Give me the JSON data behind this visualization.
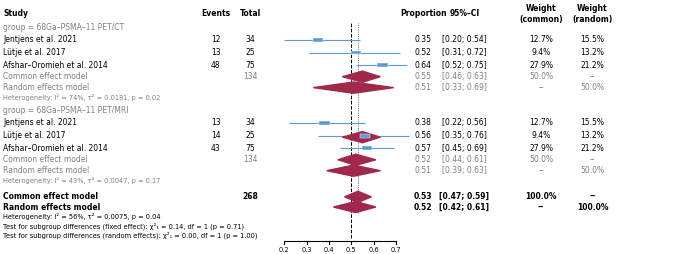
{
  "group1_label": "group = 68Ga–PSMA–11 PET/CT",
  "group2_label": "group = 68Ga–PSMA–11 PET/MRI",
  "studies_g1": [
    {
      "name": "Jentjens et al. 2021",
      "events": 12,
      "total": 34,
      "prop": 0.35,
      "ci_lo": 0.2,
      "ci_hi": 0.54,
      "w_common": "12.7%",
      "w_random": "15.5%"
    },
    {
      "name": "Lütje et al. 2017",
      "events": 13,
      "total": 25,
      "prop": 0.52,
      "ci_lo": 0.31,
      "ci_hi": 0.72,
      "w_common": "9.4%",
      "w_random": "13.2%"
    },
    {
      "name": "Afshar–Oromieh et al. 2014",
      "events": 48,
      "total": 75,
      "prop": 0.64,
      "ci_lo": 0.52,
      "ci_hi": 0.75,
      "w_common": "27.9%",
      "w_random": "21.2%"
    }
  ],
  "common_g1": {
    "total": 134,
    "prop": 0.55,
    "ci_lo": 0.46,
    "ci_hi": 0.63,
    "w_common": "50.0%",
    "w_random": "--"
  },
  "random_g1": {
    "prop": 0.51,
    "ci_lo": 0.33,
    "ci_hi": 0.69,
    "w_common": "--",
    "w_random": "50.0%"
  },
  "hetero_g1": "Heterogeneity: I² = 74%, τ² = 0.0181, p = 0.02",
  "studies_g2": [
    {
      "name": "Jentjens et al. 2021",
      "events": 13,
      "total": 34,
      "prop": 0.38,
      "ci_lo": 0.22,
      "ci_hi": 0.56,
      "w_common": "12.7%",
      "w_random": "15.5%"
    },
    {
      "name": "Lütje et al. 2017",
      "events": 14,
      "total": 25,
      "prop": 0.56,
      "ci_lo": 0.35,
      "ci_hi": 0.76,
      "w_common": "9.4%",
      "w_random": "13.2%"
    },
    {
      "name": "Afshar–Oromieh et al. 2014",
      "events": 43,
      "total": 75,
      "prop": 0.57,
      "ci_lo": 0.45,
      "ci_hi": 0.69,
      "w_common": "27.9%",
      "w_random": "21.2%"
    }
  ],
  "common_g2": {
    "total": 134,
    "prop": 0.52,
    "ci_lo": 0.44,
    "ci_hi": 0.61,
    "w_common": "50.0%",
    "w_random": "--"
  },
  "random_g2": {
    "prop": 0.51,
    "ci_lo": 0.39,
    "ci_hi": 0.63,
    "w_common": "--",
    "w_random": "50.0%"
  },
  "hetero_g2": "Heterogeneity: I² = 43%, τ² = 0.0047, p = 0.17",
  "overall_common": {
    "total": 268,
    "prop": 0.53,
    "ci_lo": 0.47,
    "ci_hi": 0.59,
    "w_common": "100.0%",
    "w_random": "--"
  },
  "overall_random": {
    "prop": 0.52,
    "ci_lo": 0.42,
    "ci_hi": 0.61,
    "w_common": "--",
    "w_random": "100.0%"
  },
  "hetero_overall": "Heterogeneity: I² = 56%, τ² = 0.0075, p = 0.04",
  "subgroup_fixed": "Test for subgroup differences (fixed effect): χ²₁ = 0.14, df = 1 (p = 0.71)",
  "subgroup_random": "Test for subgroup differences (random effects): χ²₁ = 0.00, df = 1 (p = 1.00)",
  "xmin": 0.2,
  "xmax": 0.7,
  "xticks": [
    0.2,
    0.3,
    0.4,
    0.5,
    0.6,
    0.7
  ],
  "color_study": "#5B9BD5",
  "color_diamond": "#A0294B",
  "color_gray": "#808080",
  "color_black": "#000000"
}
